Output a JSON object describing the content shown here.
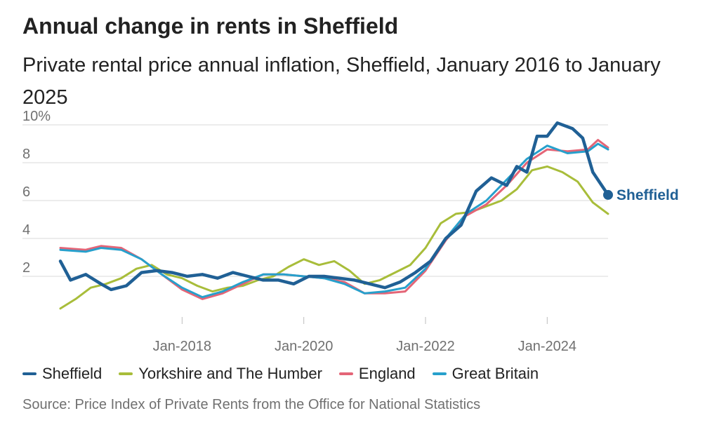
{
  "header": {
    "title": "Annual change in rents in Sheffield",
    "subtitle": "Private rental price annual inflation, Sheffield, January 2016 to January 2025"
  },
  "chart_data": {
    "type": "line",
    "title": "Annual change in rents in Sheffield",
    "subtitle": "Private rental price annual inflation, Sheffield, January 2016 to January 2025",
    "xlabel": "",
    "ylabel": "",
    "x_range": [
      "2016-01",
      "2025-01"
    ],
    "ylim": [
      0,
      10
    ],
    "y_ticks": [
      2,
      4,
      6,
      8,
      10
    ],
    "y_tick_labels": [
      "2",
      "4",
      "6",
      "8",
      "10%"
    ],
    "x_ticks": [
      "2018-01",
      "2020-01",
      "2022-01",
      "2024-01"
    ],
    "x_tick_labels": [
      "Jan-2018",
      "Jan-2020",
      "Jan-2022",
      "Jan-2024"
    ],
    "grid": "horizontal",
    "legend_position": "bottom",
    "end_label": "Sheffield",
    "series": [
      {
        "name": "Sheffield",
        "color": "#206095",
        "points": [
          [
            "2016-01",
            2.8
          ],
          [
            "2016-03",
            1.8
          ],
          [
            "2016-06",
            2.1
          ],
          [
            "2016-09",
            1.6
          ],
          [
            "2016-11",
            1.3
          ],
          [
            "2017-02",
            1.5
          ],
          [
            "2017-05",
            2.2
          ],
          [
            "2017-08",
            2.3
          ],
          [
            "2017-11",
            2.2
          ],
          [
            "2018-02",
            2.0
          ],
          [
            "2018-05",
            2.1
          ],
          [
            "2018-08",
            1.9
          ],
          [
            "2018-11",
            2.2
          ],
          [
            "2019-02",
            2.0
          ],
          [
            "2019-05",
            1.8
          ],
          [
            "2019-08",
            1.8
          ],
          [
            "2019-11",
            1.6
          ],
          [
            "2020-02",
            2.0
          ],
          [
            "2020-05",
            2.0
          ],
          [
            "2020-08",
            1.9
          ],
          [
            "2020-11",
            1.8
          ],
          [
            "2021-02",
            1.6
          ],
          [
            "2021-05",
            1.4
          ],
          [
            "2021-08",
            1.7
          ],
          [
            "2021-11",
            2.2
          ],
          [
            "2022-02",
            2.8
          ],
          [
            "2022-05",
            4.0
          ],
          [
            "2022-08",
            4.7
          ],
          [
            "2022-11",
            6.5
          ],
          [
            "2023-02",
            7.2
          ],
          [
            "2023-05",
            6.8
          ],
          [
            "2023-07",
            7.8
          ],
          [
            "2023-09",
            7.5
          ],
          [
            "2023-11",
            9.4
          ],
          [
            "2024-01",
            9.4
          ],
          [
            "2024-03",
            10.1
          ],
          [
            "2024-06",
            9.8
          ],
          [
            "2024-08",
            9.3
          ],
          [
            "2024-10",
            7.5
          ],
          [
            "2025-01",
            6.3
          ]
        ]
      },
      {
        "name": "Yorkshire and The Humber",
        "color": "#a8bd3a",
        "points": [
          [
            "2016-01",
            0.3
          ],
          [
            "2016-04",
            0.8
          ],
          [
            "2016-07",
            1.4
          ],
          [
            "2016-10",
            1.6
          ],
          [
            "2017-01",
            1.9
          ],
          [
            "2017-04",
            2.4
          ],
          [
            "2017-07",
            2.6
          ],
          [
            "2017-10",
            2.1
          ],
          [
            "2018-01",
            1.9
          ],
          [
            "2018-04",
            1.5
          ],
          [
            "2018-07",
            1.2
          ],
          [
            "2018-10",
            1.4
          ],
          [
            "2019-01",
            1.5
          ],
          [
            "2019-04",
            1.8
          ],
          [
            "2019-07",
            2.0
          ],
          [
            "2019-10",
            2.5
          ],
          [
            "2020-01",
            2.9
          ],
          [
            "2020-04",
            2.6
          ],
          [
            "2020-07",
            2.8
          ],
          [
            "2020-10",
            2.3
          ],
          [
            "2021-01",
            1.6
          ],
          [
            "2021-04",
            1.8
          ],
          [
            "2021-07",
            2.2
          ],
          [
            "2021-10",
            2.6
          ],
          [
            "2022-01",
            3.5
          ],
          [
            "2022-04",
            4.8
          ],
          [
            "2022-07",
            5.3
          ],
          [
            "2022-10",
            5.4
          ],
          [
            "2023-01",
            5.7
          ],
          [
            "2023-04",
            6.0
          ],
          [
            "2023-07",
            6.6
          ],
          [
            "2023-10",
            7.6
          ],
          [
            "2024-01",
            7.8
          ],
          [
            "2024-04",
            7.5
          ],
          [
            "2024-07",
            7.0
          ],
          [
            "2024-10",
            5.9
          ],
          [
            "2025-01",
            5.3
          ]
        ]
      },
      {
        "name": "England",
        "color": "#e46577",
        "points": [
          [
            "2016-01",
            3.5
          ],
          [
            "2016-06",
            3.4
          ],
          [
            "2016-09",
            3.6
          ],
          [
            "2017-01",
            3.5
          ],
          [
            "2017-05",
            2.9
          ],
          [
            "2017-09",
            2.1
          ],
          [
            "2018-01",
            1.3
          ],
          [
            "2018-05",
            0.8
          ],
          [
            "2018-09",
            1.1
          ],
          [
            "2019-01",
            1.6
          ],
          [
            "2019-05",
            2.1
          ],
          [
            "2019-09",
            2.1
          ],
          [
            "2020-01",
            2.0
          ],
          [
            "2020-05",
            1.9
          ],
          [
            "2020-09",
            1.7
          ],
          [
            "2021-01",
            1.1
          ],
          [
            "2021-05",
            1.1
          ],
          [
            "2021-09",
            1.2
          ],
          [
            "2022-01",
            2.3
          ],
          [
            "2022-05",
            3.9
          ],
          [
            "2022-09",
            5.2
          ],
          [
            "2023-01",
            5.8
          ],
          [
            "2023-05",
            6.8
          ],
          [
            "2023-09",
            8.0
          ],
          [
            "2024-01",
            8.7
          ],
          [
            "2024-05",
            8.6
          ],
          [
            "2024-09",
            8.7
          ],
          [
            "2024-11",
            9.2
          ],
          [
            "2025-01",
            8.8
          ]
        ]
      },
      {
        "name": "Great Britain",
        "color": "#27a0cc",
        "points": [
          [
            "2016-01",
            3.4
          ],
          [
            "2016-06",
            3.3
          ],
          [
            "2016-09",
            3.5
          ],
          [
            "2017-01",
            3.4
          ],
          [
            "2017-05",
            2.9
          ],
          [
            "2017-09",
            2.1
          ],
          [
            "2018-01",
            1.4
          ],
          [
            "2018-05",
            0.9
          ],
          [
            "2018-09",
            1.2
          ],
          [
            "2019-01",
            1.7
          ],
          [
            "2019-05",
            2.1
          ],
          [
            "2019-09",
            2.1
          ],
          [
            "2020-01",
            2.0
          ],
          [
            "2020-05",
            1.9
          ],
          [
            "2020-09",
            1.6
          ],
          [
            "2021-01",
            1.1
          ],
          [
            "2021-05",
            1.2
          ],
          [
            "2021-09",
            1.4
          ],
          [
            "2022-01",
            2.4
          ],
          [
            "2022-05",
            4.0
          ],
          [
            "2022-09",
            5.3
          ],
          [
            "2023-01",
            6.0
          ],
          [
            "2023-05",
            7.1
          ],
          [
            "2023-09",
            8.2
          ],
          [
            "2024-01",
            8.9
          ],
          [
            "2024-05",
            8.5
          ],
          [
            "2024-09",
            8.6
          ],
          [
            "2024-11",
            9.0
          ],
          [
            "2025-01",
            8.7
          ]
        ]
      }
    ]
  },
  "legend": {
    "items": [
      {
        "label": "Sheffield",
        "color": "#206095"
      },
      {
        "label": "Yorkshire and The Humber",
        "color": "#a8bd3a"
      },
      {
        "label": "England",
        "color": "#e46577"
      },
      {
        "label": "Great Britain",
        "color": "#27a0cc"
      }
    ]
  },
  "footer": {
    "source": "Source: Price Index of Private Rents from the Office for National Statistics"
  }
}
